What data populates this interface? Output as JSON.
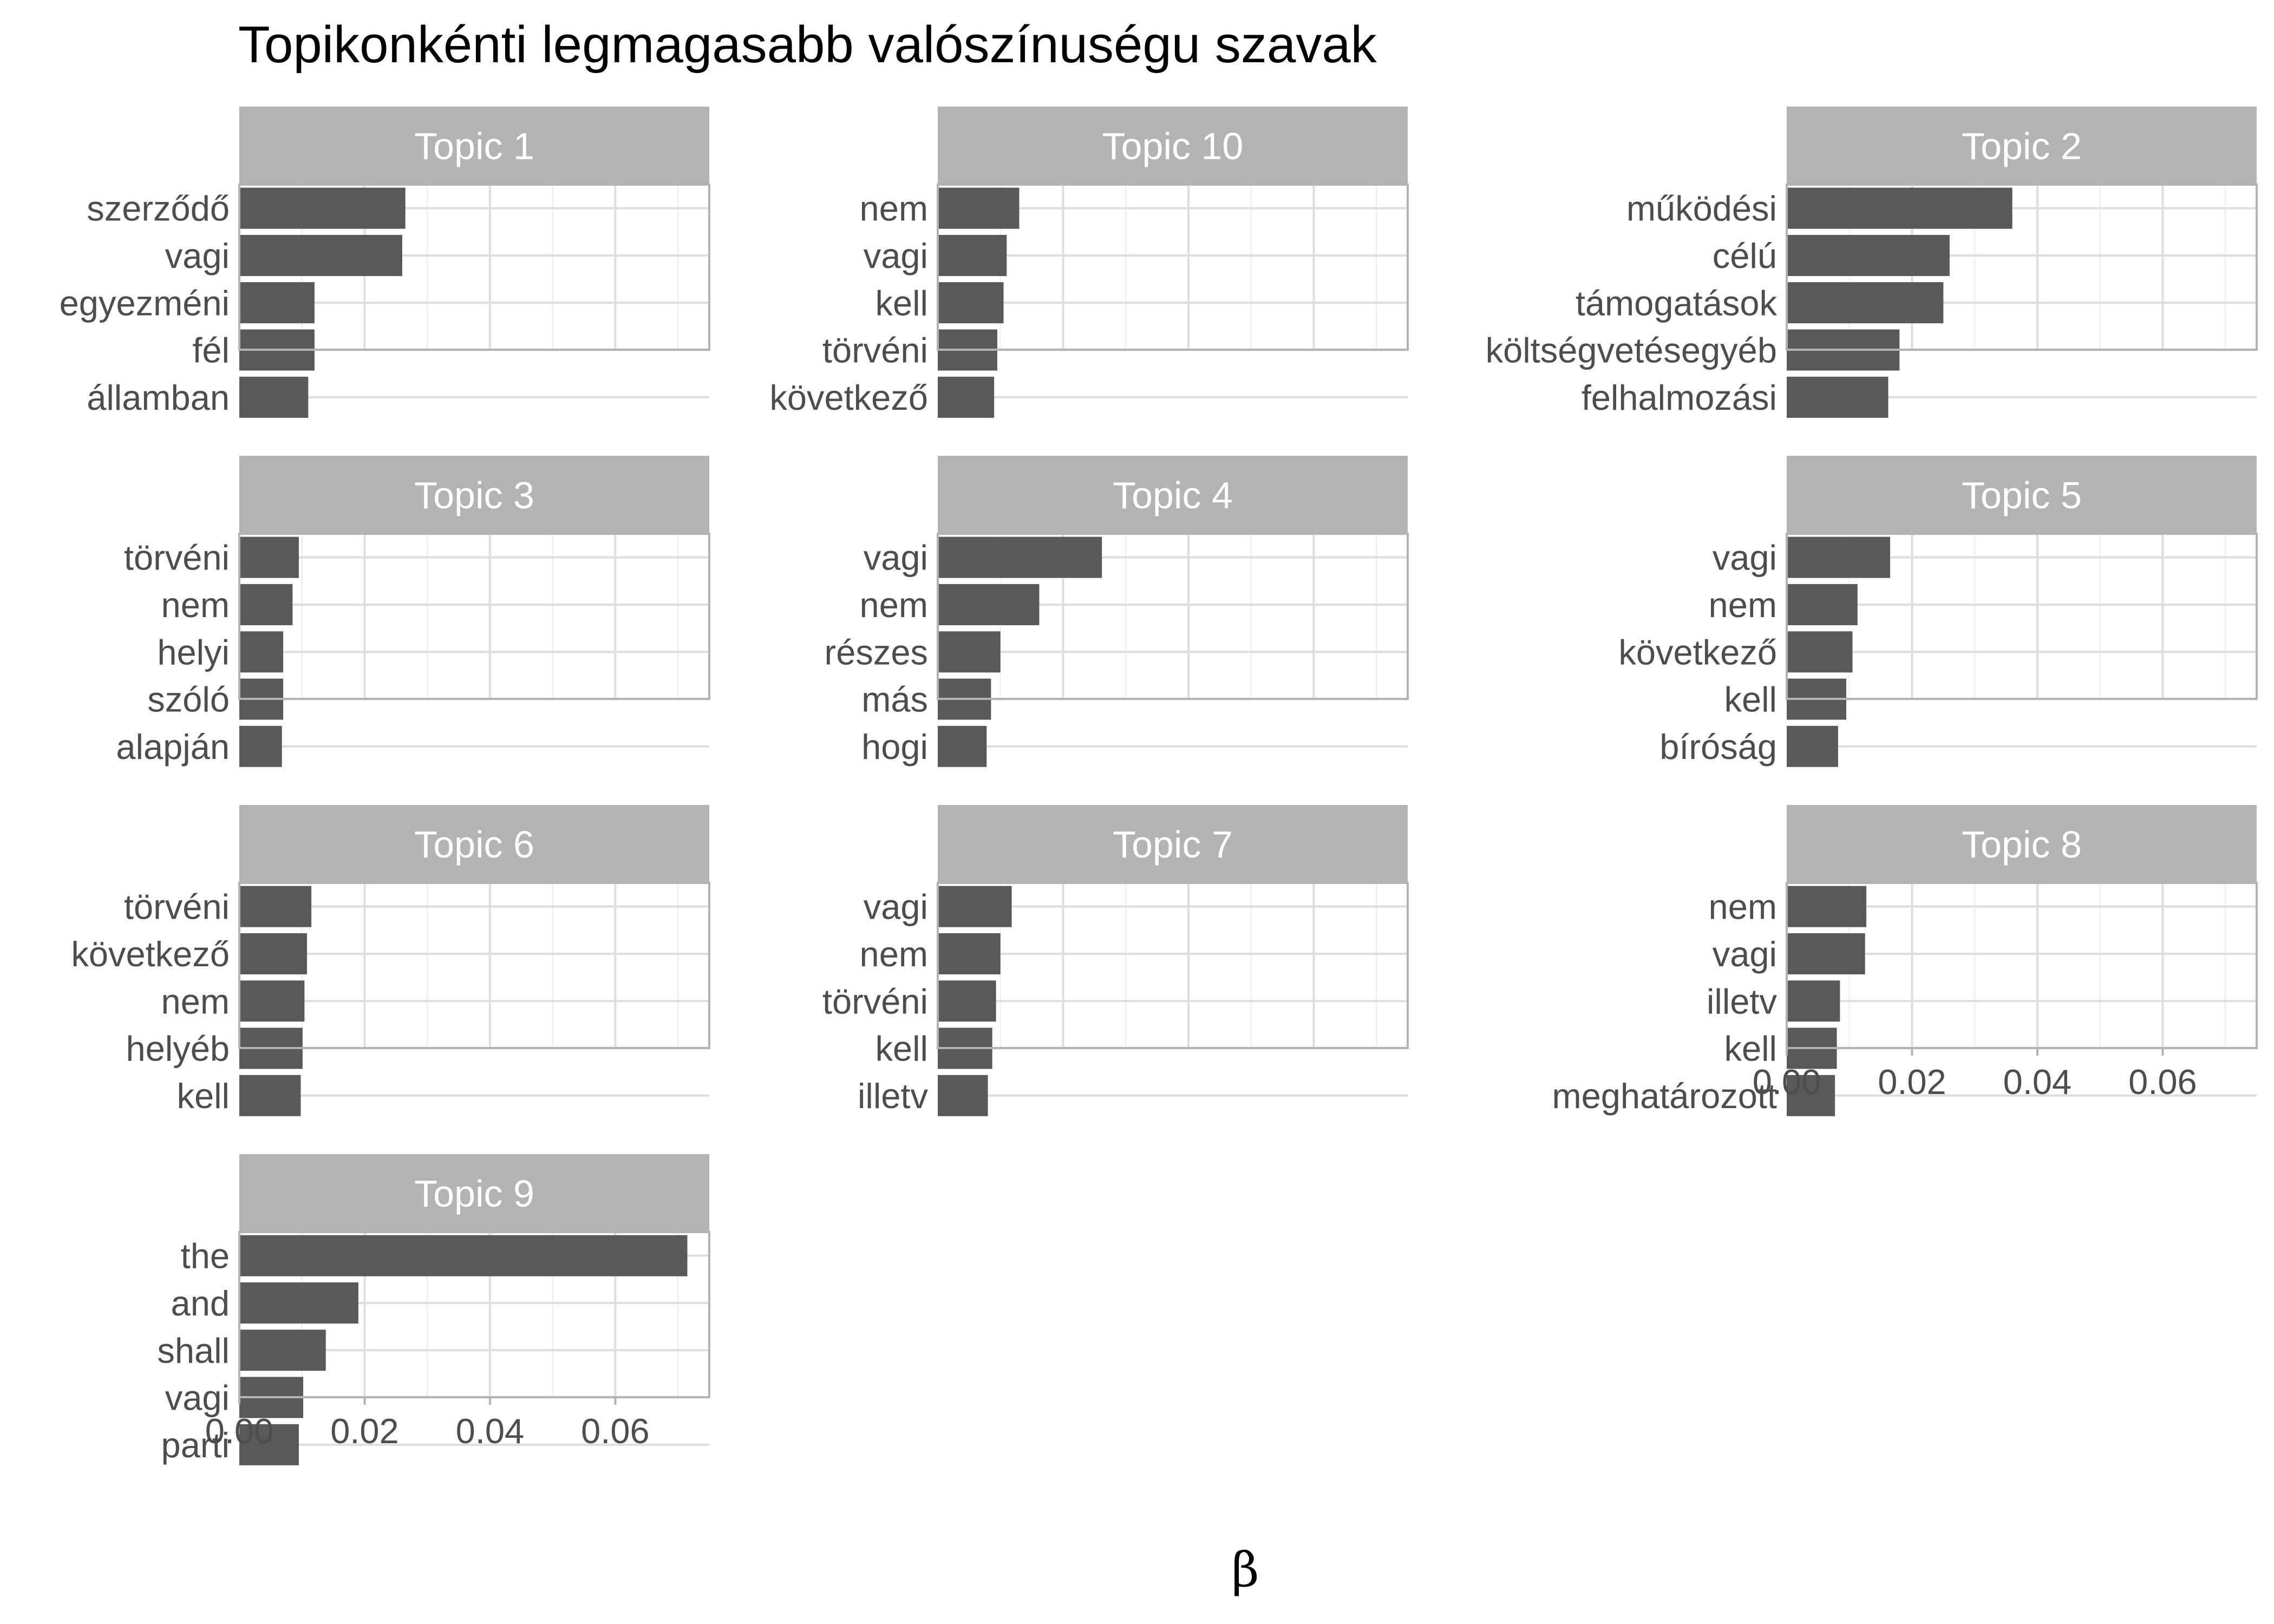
{
  "chart_data": {
    "type": "bar",
    "orientation": "horizontal",
    "title": "Topikonkénti legmagasabb valószínuségu szavak",
    "xlabel": "β",
    "ylabel": "",
    "xlim": [
      0,
      0.075
    ],
    "x_ticks": [
      0.0,
      0.02,
      0.04,
      0.06
    ],
    "x_tick_labels": [
      "0.00",
      "0.02",
      "0.04",
      "0.06"
    ],
    "grid": true,
    "colors": {
      "bar": "#595959",
      "strip": "#b3b3b3",
      "strip_text": "#ffffff"
    },
    "facets": [
      {
        "label": "Topic 1",
        "terms": [
          "szerződő",
          "vagi",
          "egyezméni",
          "fél",
          "államban"
        ],
        "values": [
          0.0265,
          0.026,
          0.012,
          0.012,
          0.011
        ]
      },
      {
        "label": "Topic 10",
        "terms": [
          "nem",
          "vagi",
          "kell",
          "törvéni",
          "következő"
        ],
        "values": [
          0.013,
          0.011,
          0.0105,
          0.0095,
          0.009
        ]
      },
      {
        "label": "Topic 2",
        "terms": [
          "működési",
          "célú",
          "támogatások",
          "költségvetésegyéb",
          "felhalmozási"
        ],
        "values": [
          0.036,
          0.026,
          0.025,
          0.018,
          0.0162
        ]
      },
      {
        "label": "Topic 3",
        "terms": [
          "törvéni",
          "nem",
          "helyi",
          "szóló",
          "alapján"
        ],
        "values": [
          0.0095,
          0.0085,
          0.007,
          0.007,
          0.0068
        ]
      },
      {
        "label": "Topic 4",
        "terms": [
          "vagi",
          "nem",
          "részes",
          "más",
          "hogi"
        ],
        "values": [
          0.0262,
          0.0162,
          0.01,
          0.0085,
          0.0078
        ]
      },
      {
        "label": "Topic 5",
        "terms": [
          "vagi",
          "nem",
          "következő",
          "kell",
          "bíróság"
        ],
        "values": [
          0.0165,
          0.0113,
          0.0105,
          0.0095,
          0.0082
        ]
      },
      {
        "label": "Topic 6",
        "terms": [
          "törvéni",
          "következő",
          "nem",
          "helyéb",
          "kell"
        ],
        "values": [
          0.0115,
          0.0108,
          0.0104,
          0.0101,
          0.0098
        ]
      },
      {
        "label": "Topic 7",
        "terms": [
          "vagi",
          "nem",
          "törvéni",
          "kell",
          "illetv"
        ],
        "values": [
          0.0118,
          0.01,
          0.0093,
          0.0087,
          0.008
        ]
      },
      {
        "label": "Topic 8",
        "terms": [
          "nem",
          "vagi",
          "illetv",
          "kell",
          "meghatározott"
        ],
        "values": [
          0.0127,
          0.0125,
          0.0085,
          0.008,
          0.0077
        ]
      },
      {
        "label": "Topic 9",
        "terms": [
          "the",
          "and",
          "shall",
          "vagi",
          "parti"
        ],
        "values": [
          0.0715,
          0.019,
          0.0138,
          0.0102,
          0.0095
        ]
      }
    ]
  }
}
